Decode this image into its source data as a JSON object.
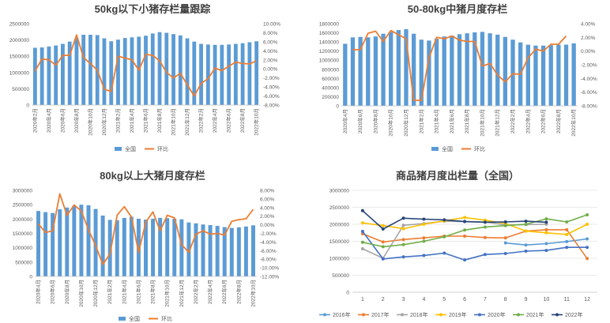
{
  "chart_data": [
    {
      "type": "bar+line",
      "title": "50kg以下小猪存栏量跟踪",
      "legend": [
        "全国",
        "环比"
      ],
      "legend_position": "bottom",
      "bar_color": "#5b9bd5",
      "line_color": "#ed7d31",
      "y_left": {
        "min": 0,
        "max": 2500000,
        "step": 500000
      },
      "y_right": {
        "min": -8,
        "max": 10,
        "step": 2,
        "format": "percent2"
      },
      "categories": [
        "2020年2月",
        "2020年3月",
        "2020年4月",
        "2020年5月",
        "2020年6月",
        "2020年7月",
        "2020年8月",
        "2020年9月",
        "2020年10月",
        "2020年11月",
        "2020年12月",
        "2021年1月",
        "2021年2月",
        "2021年3月",
        "2021年4月",
        "2021年5月",
        "2021年6月",
        "2021年7月",
        "2021年8月",
        "2021年9月",
        "2021年10月",
        "2021年11月",
        "2021年12月",
        "2022年1月",
        "2022年2月",
        "2022年3月",
        "2022年4月",
        "2022年5月",
        "2022年6月",
        "2022年7月",
        "2022年8月",
        "2022年9月",
        "2022年10月"
      ],
      "tick_labels": [
        "2020年2月",
        "2020年4月",
        "2020年6月",
        "2020年8月",
        "2020年10月",
        "2020年12月",
        "2021年2月",
        "2021年4月",
        "2021年6月",
        "2021年8月",
        "2021年10月",
        "2021年12月",
        "2022年2月",
        "2022年4月",
        "2022年6月",
        "2022年8月",
        "2022年10月"
      ],
      "bars": [
        1760000,
        1770000,
        1800000,
        1830000,
        1880000,
        1950000,
        2060000,
        2160000,
        2160000,
        2150000,
        2050000,
        1960000,
        2010000,
        2060000,
        2080000,
        2100000,
        2130000,
        2200000,
        2240000,
        2220000,
        2180000,
        2140000,
        2050000,
        1950000,
        1880000,
        1860000,
        1850000,
        1850000,
        1860000,
        1880000,
        1900000,
        1930000,
        1960000
      ],
      "line": [
        -0.5,
        2.2,
        2.0,
        0.8,
        3.0,
        3.0,
        7.5,
        2.5,
        1.2,
        -0.3,
        -4.5,
        -5.0,
        2.8,
        2.4,
        2.0,
        -0.3,
        3.2,
        3.0,
        1.8,
        -0.8,
        -2.0,
        -1.0,
        -3.5,
        -6.0,
        -3.2,
        -2.2,
        0.2,
        -0.4,
        0.6,
        1.5,
        1.2,
        1.1,
        1.8
      ]
    },
    {
      "type": "bar+line",
      "title": "50-80kg中猪月度存栏",
      "legend": [
        "全国",
        "环比"
      ],
      "legend_position": "bottom",
      "bar_color": "#5b9bd5",
      "line_color": "#ed7d31",
      "y_left": {
        "min": 0,
        "max": 1800000,
        "step": 200000
      },
      "y_right": {
        "min": -8,
        "max": 4,
        "step": 2,
        "format": "percent2"
      },
      "categories": [
        "2020年4月",
        "2020年5月",
        "2020年6月",
        "2020年7月",
        "2020年8月",
        "2020年9月",
        "2020年10月",
        "2020年11月",
        "2020年12月",
        "2021年1月",
        "2021年2月",
        "2021年3月",
        "2021年4月",
        "2021年5月",
        "2021年6月",
        "2021年7月",
        "2021年8月",
        "2021年9月",
        "2021年10月",
        "2021年11月",
        "2021年12月",
        "2022年1月",
        "2022年2月",
        "2022年3月",
        "2022年4月",
        "2022年5月",
        "2022年6月",
        "2022年7月",
        "2022年8月",
        "2022年9月",
        "2022年10月"
      ],
      "tick_labels": [
        "2020年4月",
        "2020年6月",
        "2020年8月",
        "2020年10月",
        "2020年12月",
        "2021年2月",
        "2021年4月",
        "2021年6月",
        "2021年8月",
        "2021年10月",
        "2021年12月",
        "2022年2月",
        "2022年4月",
        "2022年6月",
        "2022年8月",
        "2022年10月"
      ],
      "bars": [
        1360000,
        1500000,
        1510000,
        1500000,
        1520000,
        1580000,
        1620000,
        1660000,
        1680000,
        1580000,
        1450000,
        1430000,
        1470000,
        1520000,
        1540000,
        1570000,
        1590000,
        1610000,
        1620000,
        1590000,
        1560000,
        1510000,
        1450000,
        1390000,
        1340000,
        1320000,
        1320000,
        1330000,
        1340000,
        1340000,
        1370000
      ],
      "line": [
        null,
        0.2,
        0.2,
        2.6,
        2.9,
        1.4,
        3.0,
        2.4,
        1.8,
        -7.2,
        -7.2,
        -1.0,
        2.0,
        1.8,
        2.2,
        1.6,
        1.4,
        1.4,
        -2.2,
        -1.8,
        -3.5,
        -4.5,
        -3.3,
        -3.4,
        -1.0,
        0.3,
        0.0,
        1.0,
        1.0,
        2.2,
        null
      ]
    },
    {
      "type": "bar+line",
      "title": "80kg以上大猪月度存栏",
      "legend": [
        "全国",
        "环比"
      ],
      "legend_position": "bottom",
      "bar_color": "#5b9bd5",
      "line_color": "#ed7d31",
      "y_left": {
        "min": 0,
        "max": 3000000,
        "step": 500000
      },
      "y_right": {
        "min": -12,
        "max": 8,
        "step": 2,
        "format": "percent2"
      },
      "categories": [
        "2020年4月",
        "2020年5月",
        "2020年6月",
        "2020年7月",
        "2020年8月",
        "2020年9月",
        "2020年10月",
        "2020年11月",
        "2020年12月",
        "2021年1月",
        "2021年2月",
        "2021年3月",
        "2021年4月",
        "2021年5月",
        "2021年6月",
        "2021年7月",
        "2021年8月",
        "2021年9月",
        "2021年10月",
        "2021年11月",
        "2021年12月",
        "2022年1月",
        "2022年2月",
        "2022年3月",
        "2022年4月",
        "2022年5月",
        "2022年6月",
        "2022年7月",
        "2022年8月",
        "2022年9月",
        "2022年10月"
      ],
      "tick_labels": [
        "2020年4月",
        "2020年6月",
        "2020年8月",
        "2020年10月",
        "2020年12月",
        "2021年2月",
        "2021年4月",
        "2021年6月",
        "2021年8月",
        "2021年10月",
        "2021年12月",
        "2022年2月",
        "2022年4月",
        "2022年6月",
        "2022年8月",
        "2022年10月"
      ],
      "bars": [
        2280000,
        2240000,
        2210000,
        2340000,
        2400000,
        2460000,
        2500000,
        2480000,
        2350000,
        2120000,
        1970000,
        1960000,
        2040000,
        2080000,
        2010000,
        1980000,
        2010000,
        2040000,
        2030000,
        2010000,
        1990000,
        1880000,
        1850000,
        1810000,
        1790000,
        1760000,
        1720000,
        1690000,
        1710000,
        1740000,
        1780000
      ],
      "line": [
        0.2,
        -1.8,
        -1.4,
        7.2,
        2.2,
        4.6,
        3.2,
        -1.2,
        -4.8,
        -9.2,
        -6.8,
        2.2,
        4.2,
        1.8,
        -6.4,
        0.6,
        3.0,
        -1.4,
        2.2,
        1.6,
        -4.6,
        -6.4,
        -2.2,
        -1.4,
        -2.2,
        -2.0,
        -2.4,
        0.8,
        1.2,
        1.4,
        3.6
      ]
    },
    {
      "type": "line",
      "title": "商品猪月度出栏量（全国）",
      "legend_position": "bottom",
      "x": [
        1,
        2,
        3,
        4,
        5,
        6,
        7,
        8,
        9,
        10,
        11,
        12
      ],
      "y_axis": {
        "min": 0,
        "max": 3000000,
        "step": 500000
      },
      "series": [
        {
          "name": "2016年",
          "color": "#5b9bd5",
          "values": [
            null,
            null,
            null,
            null,
            null,
            null,
            null,
            1450000,
            1390000,
            1430000,
            1490000,
            1570000
          ]
        },
        {
          "name": "2017年",
          "color": "#ed7d31",
          "values": [
            1720000,
            1480000,
            1550000,
            1600000,
            1650000,
            1650000,
            1610000,
            1600000,
            1800000,
            1840000,
            1840000,
            990000
          ]
        },
        {
          "name": "2018年",
          "color": "#a5a5a5",
          "values": [
            1280000,
            1000000,
            1970000,
            2020000,
            2090000,
            2080000,
            2070000,
            1980000,
            1990000,
            2000000,
            null,
            null
          ]
        },
        {
          "name": "2019年",
          "color": "#ffc000",
          "values": [
            2040000,
            1960000,
            1870000,
            2000000,
            2100000,
            2200000,
            2120000,
            2020000,
            1800000,
            1750000,
            1700000,
            2000000
          ]
        },
        {
          "name": "2020年",
          "color": "#4472c4",
          "values": [
            1790000,
            980000,
            1040000,
            1080000,
            1150000,
            950000,
            1110000,
            1140000,
            1210000,
            1230000,
            1320000,
            1320000
          ]
        },
        {
          "name": "2021年",
          "color": "#70ad47",
          "values": [
            1470000,
            1340000,
            1400000,
            1500000,
            1630000,
            1830000,
            1920000,
            1960000,
            2000000,
            2160000,
            2070000,
            2280000
          ]
        },
        {
          "name": "2022年",
          "color": "#264478",
          "values": [
            2400000,
            1860000,
            2180000,
            2150000,
            2130000,
            2080000,
            2060000,
            2070000,
            2090000,
            2060000,
            null,
            null
          ]
        }
      ]
    }
  ]
}
